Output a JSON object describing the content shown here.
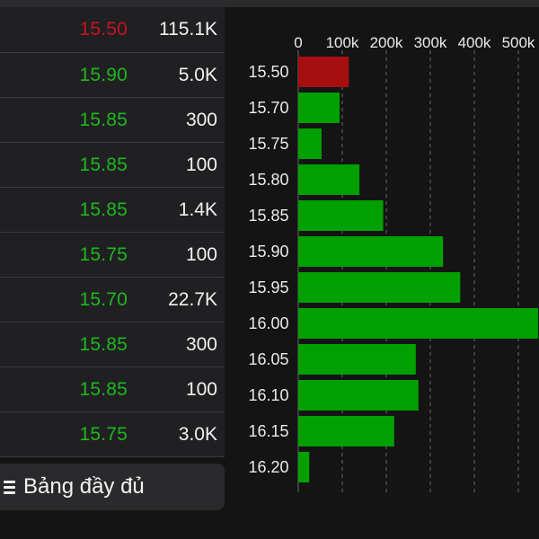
{
  "trades": [
    {
      "price": "15.50",
      "volume": "115.1K",
      "color": "#c8131e"
    },
    {
      "price": "15.90",
      "volume": "5.0K",
      "color": "#1db81d"
    },
    {
      "price": "15.85",
      "volume": "300",
      "color": "#1db81d"
    },
    {
      "price": "15.85",
      "volume": "100",
      "color": "#1db81d"
    },
    {
      "price": "15.85",
      "volume": "1.4K",
      "color": "#1db81d"
    },
    {
      "price": "15.75",
      "volume": "100",
      "color": "#1db81d"
    },
    {
      "price": "15.70",
      "volume": "22.7K",
      "color": "#1db81d"
    },
    {
      "price": "15.85",
      "volume": "300",
      "color": "#1db81d"
    },
    {
      "price": "15.85",
      "volume": "100",
      "color": "#1db81d"
    },
    {
      "price": "15.75",
      "volume": "3.0K",
      "color": "#1db81d"
    }
  ],
  "full_table_button": {
    "label": "Bảng đầy đủ",
    "icon": "menu-icon"
  },
  "colors": {
    "down": "#c8131e",
    "up": "#1db81d",
    "bar_down": "#a50f0f",
    "bar_up": "#00a000",
    "background": "#141414",
    "panel": "#202023"
  },
  "chart_data": {
    "type": "bar",
    "orientation": "horizontal",
    "xticks": [
      "0",
      "100k",
      "200k",
      "300k",
      "400k",
      "500k"
    ],
    "xlim": [
      0,
      545000
    ],
    "categories": [
      "15.50",
      "15.70",
      "15.75",
      "15.80",
      "15.85",
      "15.90",
      "15.95",
      "16.00",
      "16.05",
      "16.10",
      "16.15",
      "16.20"
    ],
    "values": [
      115000,
      94000,
      53000,
      139000,
      193000,
      329000,
      368000,
      545000,
      267000,
      273000,
      218000,
      25000
    ],
    "bar_colors": [
      "#a50f0f",
      "#00a000",
      "#00a000",
      "#00a000",
      "#00a000",
      "#00a000",
      "#00a000",
      "#00a000",
      "#00a000",
      "#00a000",
      "#00a000",
      "#00a000"
    ],
    "grid": true
  }
}
